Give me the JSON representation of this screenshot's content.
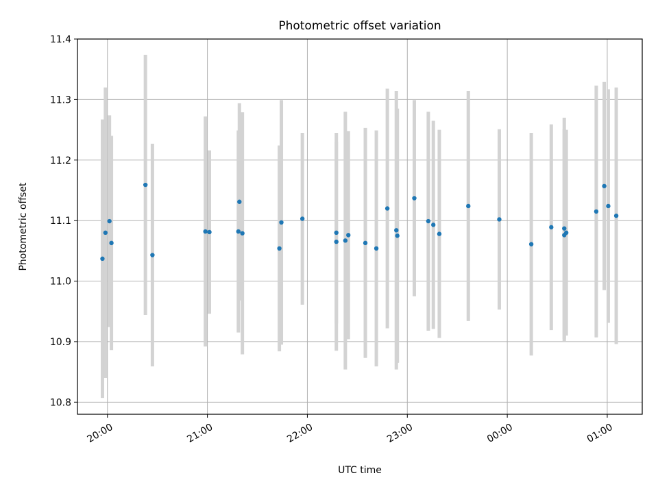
{
  "chart_data": {
    "type": "scatter",
    "title": "Photometric offset variation",
    "xlabel": "UTC time",
    "ylabel": "Photometric offset",
    "ylim": [
      10.78,
      11.4
    ],
    "xlim_hours": [
      19.7,
      25.35
    ],
    "x_axis": "time",
    "yticks": [
      10.8,
      10.9,
      11.0,
      11.1,
      11.2,
      11.3,
      11.4
    ],
    "xticks": [
      {
        "t": 20,
        "label": "20:00"
      },
      {
        "t": 21,
        "label": "21:00"
      },
      {
        "t": 22,
        "label": "22:00"
      },
      {
        "t": 23,
        "label": "23:00"
      },
      {
        "t": 24,
        "label": "00:00"
      },
      {
        "t": 25,
        "label": "01:00"
      }
    ],
    "grid": true,
    "point_color": "#1f77b4",
    "errorbar_color": "#d3d3d3",
    "series": [
      {
        "points": [
          {
            "t": 19.95,
            "y": 11.037,
            "err": 0.23
          },
          {
            "t": 19.98,
            "y": 11.08,
            "err": 0.24
          },
          {
            "t": 20.02,
            "y": 11.099,
            "err": 0.175
          },
          {
            "t": 20.04,
            "y": 11.063,
            "err": 0.177
          },
          {
            "t": 20.38,
            "y": 11.159,
            "err": 0.215
          },
          {
            "t": 20.45,
            "y": 11.043,
            "err": 0.184
          },
          {
            "t": 20.98,
            "y": 11.082,
            "err": 0.19
          },
          {
            "t": 21.02,
            "y": 11.081,
            "err": 0.135
          },
          {
            "t": 21.31,
            "y": 11.082,
            "err": 0.167
          },
          {
            "t": 21.32,
            "y": 11.131,
            "err": 0.163
          },
          {
            "t": 21.35,
            "y": 11.079,
            "err": 0.2
          },
          {
            "t": 21.72,
            "y": 11.054,
            "err": 0.17
          },
          {
            "t": 21.74,
            "y": 11.097,
            "err": 0.202
          },
          {
            "t": 21.95,
            "y": 11.103,
            "err": 0.142
          },
          {
            "t": 22.29,
            "y": 11.065,
            "err": 0.18
          },
          {
            "t": 22.29,
            "y": 11.08,
            "err": 0.15
          },
          {
            "t": 22.38,
            "y": 11.067,
            "err": 0.213
          },
          {
            "t": 22.41,
            "y": 11.076,
            "err": 0.172
          },
          {
            "t": 22.58,
            "y": 11.063,
            "err": 0.19
          },
          {
            "t": 22.69,
            "y": 11.054,
            "err": 0.195
          },
          {
            "t": 22.8,
            "y": 11.12,
            "err": 0.198
          },
          {
            "t": 22.89,
            "y": 11.084,
            "err": 0.23
          },
          {
            "t": 22.9,
            "y": 11.075,
            "err": 0.21
          },
          {
            "t": 23.07,
            "y": 11.137,
            "err": 0.162
          },
          {
            "t": 23.21,
            "y": 11.099,
            "err": 0.181
          },
          {
            "t": 23.26,
            "y": 11.093,
            "err": 0.172
          },
          {
            "t": 23.32,
            "y": 11.078,
            "err": 0.172
          },
          {
            "t": 23.61,
            "y": 11.124,
            "err": 0.19
          },
          {
            "t": 23.92,
            "y": 11.102,
            "err": 0.149
          },
          {
            "t": 24.24,
            "y": 11.061,
            "err": 0.184
          },
          {
            "t": 24.44,
            "y": 11.089,
            "err": 0.17
          },
          {
            "t": 24.57,
            "y": 11.076,
            "err": 0.175
          },
          {
            "t": 24.57,
            "y": 11.087,
            "err": 0.183
          },
          {
            "t": 24.59,
            "y": 11.08,
            "err": 0.17
          },
          {
            "t": 24.89,
            "y": 11.115,
            "err": 0.208
          },
          {
            "t": 24.97,
            "y": 11.157,
            "err": 0.172
          },
          {
            "t": 25.01,
            "y": 11.124,
            "err": 0.193
          },
          {
            "t": 25.09,
            "y": 11.108,
            "err": 0.212
          }
        ]
      }
    ]
  }
}
